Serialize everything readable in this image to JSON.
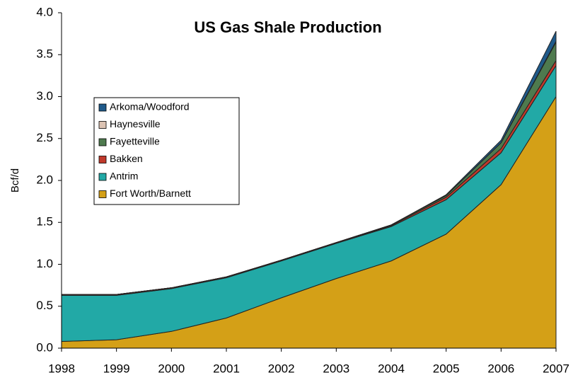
{
  "chart_data": {
    "type": "area",
    "stacked": true,
    "title": "US Gas Shale Production",
    "y_label": "Bcf/d",
    "x": [
      1998,
      1999,
      2000,
      2001,
      2002,
      2003,
      2004,
      2005,
      2006,
      2007
    ],
    "xlim": [
      1998,
      2007
    ],
    "xticks": [
      1998,
      1999,
      2000,
      2001,
      2002,
      2003,
      2004,
      2005,
      2006,
      2007
    ],
    "ylim": [
      0,
      4
    ],
    "yticks": [
      {
        "value": 0,
        "label": "0.0"
      },
      0.5,
      {
        "value": 1,
        "label": "1.0"
      },
      1.5,
      {
        "value": 2,
        "label": "2.0"
      },
      2.5,
      {
        "value": 3,
        "label": "3.0"
      },
      3.5,
      {
        "value": 4,
        "label": "4.0"
      }
    ],
    "legend": "upper left",
    "series": [
      {
        "name": "Fort Worth/Barnett",
        "color": "#d4a017",
        "values": [
          0.08,
          0.1,
          0.2,
          0.36,
          0.6,
          0.83,
          1.04,
          1.36,
          1.95,
          3.0
        ]
      },
      {
        "name": "Antrim",
        "color": "#22a9a6",
        "values": [
          0.55,
          0.53,
          0.51,
          0.48,
          0.44,
          0.42,
          0.41,
          0.41,
          0.38,
          0.37
        ]
      },
      {
        "name": "Bakken",
        "color": "#c0392b",
        "values": [
          0.01,
          0.01,
          0.01,
          0.01,
          0.01,
          0.01,
          0.01,
          0.03,
          0.05,
          0.06
        ]
      },
      {
        "name": "Fayetteville",
        "color": "#4e7a4e",
        "values": [
          0,
          0,
          0,
          0,
          0,
          0,
          0.01,
          0.02,
          0.07,
          0.22
        ]
      },
      {
        "name": "Haynesville",
        "color": "#dcc3b3",
        "values": [
          0,
          0,
          0,
          0,
          0,
          0,
          0,
          0,
          0,
          0.01
        ]
      },
      {
        "name": "Arkoma/Woodford",
        "color": "#1f5a8a",
        "values": [
          0,
          0,
          0,
          0,
          0,
          0,
          0,
          0.01,
          0.03,
          0.12
        ]
      }
    ]
  }
}
